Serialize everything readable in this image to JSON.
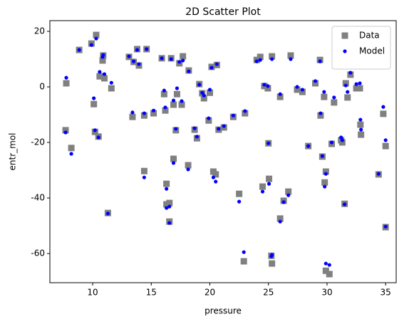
{
  "chart_data": {
    "type": "scatter",
    "title": "2D Scatter Plot",
    "xlabel": "pressure",
    "ylabel": "entr_mol",
    "x": [
      7.69,
      7.75,
      8.18,
      8.85,
      9.9,
      10.3,
      10.1,
      10.2,
      10.5,
      10.6,
      10.85,
      10.9,
      11.0,
      11.3,
      11.6,
      13.1,
      13.4,
      13.5,
      13.8,
      13.95,
      14.4,
      14.4,
      14.6,
      15.2,
      15.9,
      16.1,
      16.2,
      16.3,
      16.3,
      16.55,
      16.55,
      16.7,
      16.9,
      16.9,
      17.1,
      17.2,
      17.4,
      17.6,
      17.7,
      18.15,
      18.2,
      18.7,
      18.9,
      19.1,
      19.35,
      19.5,
      19.9,
      20.0,
      20.15,
      20.3,
      20.5,
      20.6,
      20.75,
      21.2,
      22.0,
      22.5,
      22.9,
      23.0,
      24.0,
      24.3,
      24.5,
      24.65,
      24.95,
      25.0,
      25.05,
      25.25,
      25.3,
      25.3,
      26.0,
      26.0,
      26.3,
      26.7,
      26.9,
      27.45,
      27.9,
      28.4,
      29.0,
      29.4,
      29.45,
      29.6,
      29.75,
      29.8,
      29.9,
      29.9,
      30.2,
      30.4,
      30.6,
      31.2,
      31.3,
      31.5,
      31.6,
      31.75,
      32.0,
      32.5,
      32.8,
      32.85,
      32.9,
      34.4,
      34.8,
      35.0,
      35.0
    ],
    "series": [
      {
        "name": "Data",
        "color": "#808080",
        "marker": "square",
        "values": [
          -15.6,
          1.3,
          -22,
          13.3,
          15.6,
          18.7,
          -6.2,
          -16.2,
          -17.9,
          3.8,
          9.5,
          11.3,
          3.1,
          -45.4,
          -0.5,
          10.8,
          -10.8,
          9.0,
          13.6,
          7.7,
          -10.3,
          -30.3,
          13.6,
          -9.5,
          10.3,
          -2.6,
          -8.5,
          -34.9,
          -42.3,
          -41.8,
          -48.5,
          10.3,
          -6.4,
          -25.9,
          -15.6,
          -2.6,
          8.5,
          -6.4,
          11.0,
          -28.2,
          5.9,
          -15.4,
          -18.5,
          1.0,
          -2.3,
          -4.1,
          -12.1,
          -2.1,
          7.2,
          -30.5,
          -31.5,
          7.9,
          -15.4,
          -14.6,
          -10.8,
          -38.5,
          -62.8,
          -9.5,
          9.7,
          10.8,
          -35.9,
          0.3,
          -0.5,
          -20.3,
          -33.1,
          -60.8,
          11.0,
          -63.6,
          -3.6,
          -47.4,
          -41.0,
          -37.7,
          11.3,
          -1.0,
          -1.8,
          -21.3,
          1.3,
          9.7,
          -10.3,
          -25.1,
          -3.6,
          -34.4,
          -30.5,
          -66.2,
          -67.4,
          -20.5,
          -5.6,
          -19.2,
          -20.0,
          -42.1,
          1.3,
          -3.8,
          4.4,
          -0.5,
          -0.5,
          -13.6,
          -17.2,
          -31.5,
          -9.7,
          -21.3,
          -50.5
        ]
      },
      {
        "name": "Model",
        "color": "#0000ff",
        "marker": "circle",
        "values": [
          -16.4,
          3.3,
          -24.1,
          13.3,
          15.1,
          17.4,
          -4.1,
          -15.6,
          -18.2,
          5.4,
          10.8,
          11.5,
          4.6,
          -45.6,
          1.5,
          11.0,
          -9.2,
          9.2,
          13.3,
          8.2,
          -9.5,
          -32.6,
          13.6,
          -8.5,
          10.3,
          -1.3,
          -7.4,
          -36.7,
          -43.6,
          -43.1,
          -49.0,
          10.0,
          -4.9,
          -27.4,
          -15.1,
          -0.5,
          9.0,
          -5.1,
          9.5,
          -29.7,
          5.6,
          -14.9,
          -17.9,
          0.8,
          -2.1,
          -3.1,
          -11.3,
          -1.0,
          6.9,
          -32.6,
          -34.1,
          8.2,
          -15.1,
          -14.1,
          -10.3,
          -41.3,
          -59.5,
          -8.7,
          9.2,
          9.7,
          -37.7,
          0.8,
          0.3,
          -20.3,
          -34.9,
          -61.0,
          10.0,
          -60.5,
          -2.6,
          -48.5,
          -41.5,
          -39.0,
          10.0,
          0,
          -1.0,
          -21.3,
          2.1,
          9.2,
          -9.5,
          -24.9,
          -1.8,
          -35.9,
          -31.3,
          -63.6,
          -64.1,
          -20.0,
          -3.8,
          -18.2,
          -19.2,
          -42.3,
          0.5,
          -1.8,
          5.1,
          1.0,
          1.3,
          -11.8,
          -15.4,
          -31.3,
          -7.2,
          -19.2,
          -50.3
        ]
      }
    ],
    "xlim": [
      6.35,
      35.9
    ],
    "ylim": [
      -70.5,
      23.85
    ],
    "xticks": [
      10,
      15,
      20,
      25,
      30,
      35
    ],
    "yticks": [
      -60,
      -40,
      -20,
      0,
      20
    ],
    "legend": "upper right",
    "grid": false
  }
}
